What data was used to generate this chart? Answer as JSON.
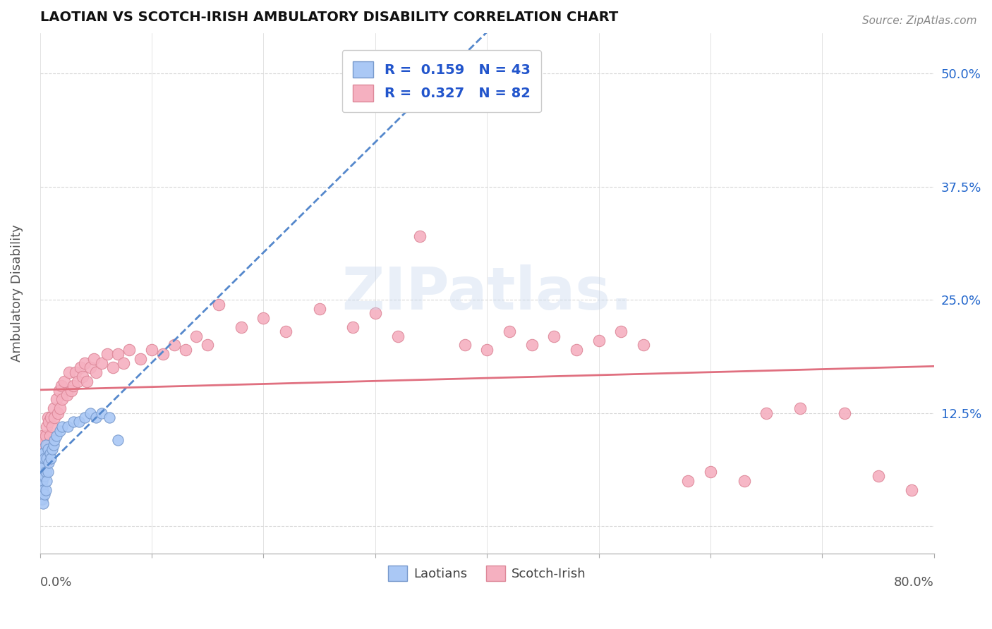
{
  "title": "LAOTIAN VS SCOTCH-IRISH AMBULATORY DISABILITY CORRELATION CHART",
  "source": "Source: ZipAtlas.com",
  "ylabel": "Ambulatory Disability",
  "yticks": [
    0.0,
    0.125,
    0.25,
    0.375,
    0.5
  ],
  "ytick_labels": [
    "",
    "12.5%",
    "25.0%",
    "37.5%",
    "50.0%"
  ],
  "xmin": 0.0,
  "xmax": 0.8,
  "ymin": -0.03,
  "ymax": 0.545,
  "laotian_color": "#aac8f5",
  "laotian_edge_color": "#7799cc",
  "scotch_color": "#f5b0c0",
  "scotch_edge_color": "#dd8899",
  "laotian_line_color": "#5588cc",
  "scotch_line_color": "#e07080",
  "R_laotian": 0.159,
  "N_laotian": 43,
  "R_scotch": 0.327,
  "N_scotch": 82,
  "legend_R_color": "#2255cc",
  "background_color": "#ffffff",
  "grid_color": "#d8d8d8",
  "laotian_x": [
    0.001,
    0.001,
    0.001,
    0.001,
    0.002,
    0.002,
    0.002,
    0.002,
    0.002,
    0.002,
    0.003,
    0.003,
    0.003,
    0.003,
    0.003,
    0.004,
    0.004,
    0.004,
    0.005,
    0.005,
    0.005,
    0.006,
    0.006,
    0.007,
    0.007,
    0.008,
    0.009,
    0.01,
    0.011,
    0.012,
    0.013,
    0.015,
    0.018,
    0.02,
    0.025,
    0.03,
    0.035,
    0.04,
    0.045,
    0.05,
    0.055,
    0.062,
    0.07
  ],
  "laotian_y": [
    0.03,
    0.045,
    0.055,
    0.065,
    0.03,
    0.04,
    0.05,
    0.06,
    0.07,
    0.08,
    0.025,
    0.04,
    0.055,
    0.065,
    0.08,
    0.035,
    0.055,
    0.075,
    0.04,
    0.06,
    0.09,
    0.05,
    0.075,
    0.06,
    0.085,
    0.07,
    0.08,
    0.075,
    0.085,
    0.09,
    0.095,
    0.1,
    0.105,
    0.11,
    0.11,
    0.115,
    0.115,
    0.12,
    0.125,
    0.12,
    0.125,
    0.12,
    0.095
  ],
  "scotch_x": [
    0.001,
    0.001,
    0.002,
    0.002,
    0.003,
    0.003,
    0.004,
    0.004,
    0.005,
    0.005,
    0.006,
    0.006,
    0.007,
    0.007,
    0.008,
    0.008,
    0.009,
    0.01,
    0.01,
    0.011,
    0.012,
    0.013,
    0.015,
    0.016,
    0.017,
    0.018,
    0.019,
    0.02,
    0.022,
    0.024,
    0.026,
    0.028,
    0.03,
    0.032,
    0.034,
    0.036,
    0.038,
    0.04,
    0.042,
    0.045,
    0.048,
    0.05,
    0.055,
    0.06,
    0.065,
    0.07,
    0.075,
    0.08,
    0.09,
    0.1,
    0.11,
    0.12,
    0.13,
    0.14,
    0.15,
    0.16,
    0.18,
    0.2,
    0.22,
    0.25,
    0.28,
    0.3,
    0.32,
    0.34,
    0.36,
    0.38,
    0.4,
    0.42,
    0.44,
    0.46,
    0.48,
    0.5,
    0.52,
    0.54,
    0.58,
    0.6,
    0.63,
    0.65,
    0.68,
    0.72,
    0.75,
    0.78
  ],
  "scotch_y": [
    0.06,
    0.09,
    0.07,
    0.1,
    0.065,
    0.085,
    0.075,
    0.095,
    0.07,
    0.1,
    0.08,
    0.11,
    0.09,
    0.12,
    0.085,
    0.115,
    0.1,
    0.09,
    0.12,
    0.11,
    0.13,
    0.12,
    0.14,
    0.125,
    0.15,
    0.13,
    0.155,
    0.14,
    0.16,
    0.145,
    0.17,
    0.15,
    0.155,
    0.17,
    0.16,
    0.175,
    0.165,
    0.18,
    0.16,
    0.175,
    0.185,
    0.17,
    0.18,
    0.19,
    0.175,
    0.19,
    0.18,
    0.195,
    0.185,
    0.195,
    0.19,
    0.2,
    0.195,
    0.21,
    0.2,
    0.245,
    0.22,
    0.23,
    0.215,
    0.24,
    0.22,
    0.235,
    0.21,
    0.32,
    0.475,
    0.2,
    0.195,
    0.215,
    0.2,
    0.21,
    0.195,
    0.205,
    0.215,
    0.2,
    0.05,
    0.06,
    0.05,
    0.125,
    0.13,
    0.125,
    0.055,
    0.04
  ]
}
